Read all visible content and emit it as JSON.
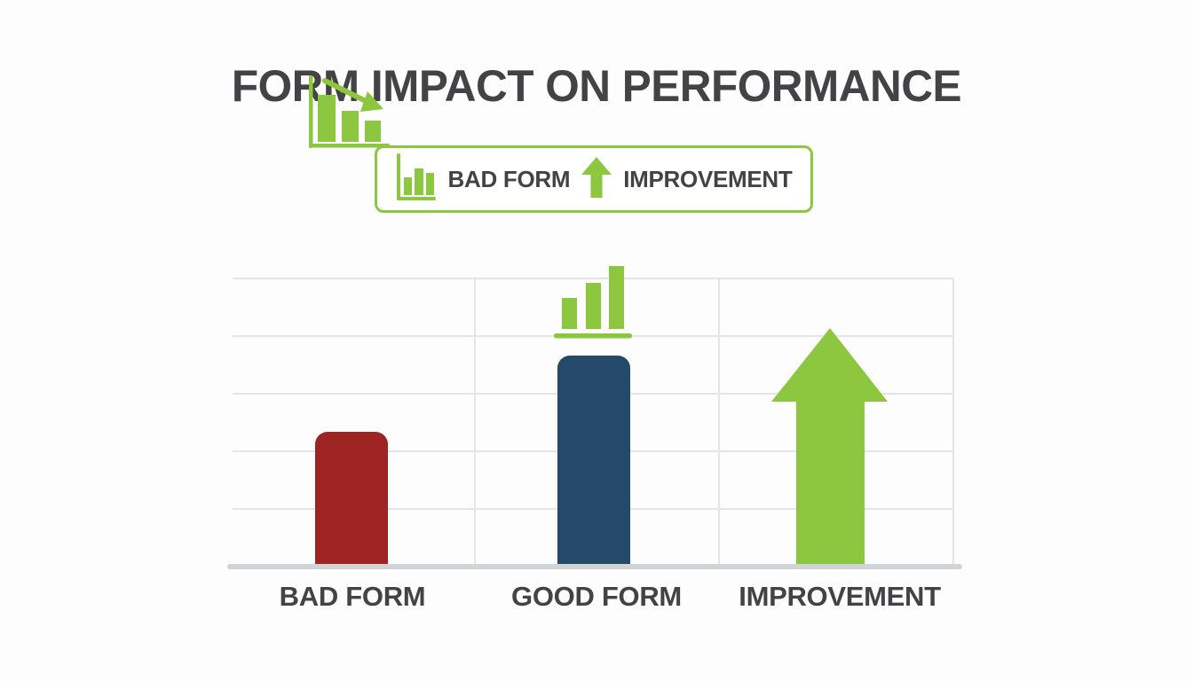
{
  "title": "FORM IMPACT ON PERFORMANCE",
  "colors": {
    "bg": "#fdfdfe",
    "green": "#8dc63f",
    "red": "#9e2423",
    "blue": "#254a69",
    "text": "#434345",
    "grid": "#e4e5e8",
    "baseline": "#d2d3d5"
  },
  "legend": {
    "border_color": "#8dc63f",
    "items": [
      {
        "icon": "bar-chart-icon",
        "label": "BAD FORM"
      },
      {
        "icon": "up-arrow-icon",
        "label": "IMPROVEMENT"
      }
    ]
  },
  "chart_data": {
    "type": "bar",
    "title": "FORM IMPACT ON PERFORMANCE",
    "categories": [
      "BAD FORM",
      "GOOD FORM",
      "IMPROVEMENT"
    ],
    "values": [
      46.5,
      73,
      82.5
    ],
    "colors": [
      "#9e2423",
      "#254a69",
      "#8dc63f"
    ],
    "xlabel": "",
    "ylabel": "",
    "ylim": [
      0,
      100
    ],
    "yticks_visible": false,
    "grid": true,
    "gridlines_horizontal": 5,
    "gridlines_vertical": 3,
    "legend_position": "top-center",
    "series_notes": [
      "BAD FORM: short dark-red rounded bar with green declining mini bar-chart icon (down-right arrow) above it",
      "GOOD FORM: tall dark-blue rounded bar with green rising mini bar-chart icon above it",
      "IMPROVEMENT: rendered as a large solid green upward arrow instead of a bar"
    ],
    "annotations": [
      {
        "target": "BAD FORM",
        "icon": "declining-bar-chart-icon",
        "color": "#8dc63f"
      },
      {
        "target": "GOOD FORM",
        "icon": "rising-bar-chart-icon",
        "color": "#8dc63f"
      },
      {
        "target": "IMPROVEMENT",
        "icon": "large-up-arrow",
        "color": "#8dc63f"
      }
    ]
  }
}
